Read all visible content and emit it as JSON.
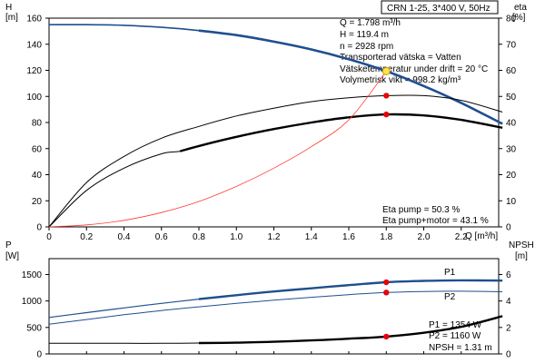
{
  "header": {
    "model": "CRN 1-25, 3*400 V, 50Hz"
  },
  "top_info": {
    "lines": [
      "Q = 1.798 m³/h",
      "H = 119.4 m",
      "n = 2928 rpm",
      "Transporterad vätska = Vatten",
      "Vätsketemperatur under drift = 20 °C",
      "Volymetrisk vikt = 998.2 kg/m³"
    ],
    "eta_pump": "Eta pump = 50.3 %",
    "eta_pump_motor": "Eta pump+motor = 43.1 %"
  },
  "bottom_info": {
    "lines": [
      "P1 = 1354 W",
      "P2 = 1160 W",
      "NPSH = 1.31 m"
    ]
  },
  "colors": {
    "head_curve": "#1f4f8f",
    "efficiency_curve": "#000000",
    "system_curve": "#ff3b30",
    "duty_point": "#e8000b",
    "duty_point_head": "#ffe34a"
  },
  "chart_data": [
    {
      "type": "line",
      "name": "top-panel",
      "xlabel": "Q [m³/h]",
      "ylabel_left": "H\n[m]",
      "ylabel_right": "eta\n[%]",
      "xlim": [
        0,
        2.4
      ],
      "ylim_left": [
        0,
        160
      ],
      "ylim_right": [
        0,
        80
      ],
      "x_ticks": [
        "0",
        "0.2",
        "0.4",
        "0.6",
        "0.8",
        "1.0",
        "1.2",
        "1.4",
        "1.6",
        "1.8",
        "2.0",
        "2.2"
      ],
      "y_ticks_left": [
        "0",
        "20",
        "40",
        "60",
        "80",
        "100",
        "120",
        "140",
        "160"
      ],
      "y_ticks_right": [
        "0",
        "10",
        "20",
        "30",
        "40",
        "50",
        "60",
        "70",
        "80"
      ],
      "series": [
        {
          "role": "head",
          "axis": "left",
          "x": [
            0,
            0.2,
            0.4,
            0.6,
            0.8,
            1.0,
            1.2,
            1.4,
            1.6,
            1.8,
            2.0,
            2.2,
            2.42
          ],
          "y": [
            155,
            155,
            154.5,
            153,
            150.5,
            147,
            142,
            136,
            128.5,
            119.4,
            108,
            95,
            79
          ]
        },
        {
          "role": "eta-pump+motor",
          "axis": "right",
          "x": [
            0,
            0.2,
            0.4,
            0.6,
            0.7,
            0.8,
            1.0,
            1.2,
            1.4,
            1.6,
            1.8,
            2.0,
            2.2,
            2.42
          ],
          "y": [
            0,
            14,
            22.5,
            28,
            29,
            31,
            34.5,
            37.5,
            40,
            42,
            43.1,
            42.7,
            41,
            38
          ]
        },
        {
          "role": "eta-pump",
          "axis": "right",
          "x": [
            0,
            0.2,
            0.4,
            0.6,
            0.8,
            1.0,
            1.2,
            1.4,
            1.6,
            1.8,
            2.0,
            2.2,
            2.42
          ],
          "y": [
            0,
            17,
            27,
            34,
            38.5,
            42.5,
            45.5,
            48,
            49.5,
            50.3,
            50.3,
            48.5,
            44
          ]
        },
        {
          "role": "system",
          "axis": "left",
          "x": [
            0,
            0.2,
            0.4,
            0.6,
            0.8,
            1.0,
            1.2,
            1.4,
            1.6,
            1.8
          ],
          "y": [
            0,
            1.5,
            5,
            11,
            19.5,
            31,
            45,
            61.5,
            82,
            119.4
          ]
        }
      ],
      "points": [
        {
          "label": "duty-head",
          "axis": "left",
          "x": 1.8,
          "y": 119.4
        },
        {
          "label": "duty-eta-pump",
          "axis": "right",
          "x": 1.8,
          "y": 50.3
        },
        {
          "label": "duty-eta-total",
          "axis": "right",
          "x": 1.8,
          "y": 43.1
        }
      ]
    },
    {
      "type": "line",
      "name": "bottom-panel",
      "ylabel_left": "P\n[W]",
      "ylabel_right": "NPSH\n[m]",
      "xlim": [
        0,
        2.4
      ],
      "ylim_left": [
        0,
        1800
      ],
      "ylim_right": [
        0,
        7.2
      ],
      "y_ticks_left": [
        "0",
        "500",
        "1000",
        "1500"
      ],
      "y_ticks_right": [
        "0",
        "2",
        "4",
        "6"
      ],
      "series": [
        {
          "name": "P1",
          "axis": "left",
          "x": [
            0,
            0.2,
            0.4,
            0.6,
            0.8,
            1.0,
            1.2,
            1.4,
            1.6,
            1.8,
            2.0,
            2.2,
            2.42
          ],
          "y": [
            690,
            780,
            870,
            955,
            1035,
            1110,
            1180,
            1240,
            1300,
            1354,
            1380,
            1390,
            1385
          ]
        },
        {
          "name": "P2",
          "axis": "left",
          "x": [
            0,
            0.2,
            0.4,
            0.6,
            0.8,
            1.0,
            1.2,
            1.4,
            1.6,
            1.8,
            2.0,
            2.2,
            2.42
          ],
          "y": [
            560,
            650,
            740,
            820,
            890,
            955,
            1015,
            1070,
            1120,
            1160,
            1180,
            1185,
            1175
          ]
        },
        {
          "role": "npsh",
          "axis": "right",
          "x": [
            0,
            0.2,
            0.4,
            0.6,
            0.8,
            1.0,
            1.2,
            1.4,
            1.6,
            1.8,
            2.0,
            2.2,
            2.42
          ],
          "y": [
            0.8,
            0.8,
            0.8,
            0.8,
            0.82,
            0.85,
            0.92,
            1.02,
            1.15,
            1.31,
            1.6,
            2.05,
            2.85
          ]
        }
      ],
      "points": [
        {
          "label": "duty-P1",
          "axis": "left",
          "x": 1.8,
          "y": 1354
        },
        {
          "label": "duty-P2",
          "axis": "left",
          "x": 1.8,
          "y": 1160
        },
        {
          "label": "duty-NPSH",
          "axis": "right",
          "x": 1.8,
          "y": 1.31
        }
      ]
    }
  ]
}
